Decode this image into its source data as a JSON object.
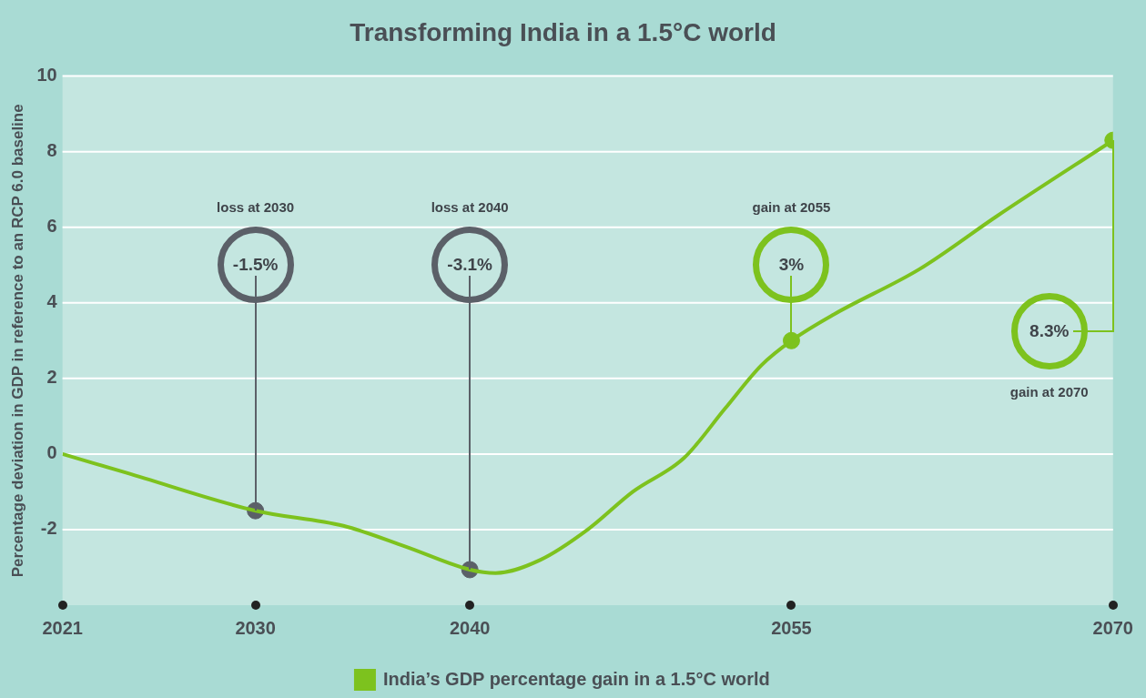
{
  "chart_data": {
    "type": "line",
    "title": "Transforming India in a 1.5°C world",
    "ylabel": "Percentage deviation in GDP in reference to an RCP 6.0 baseline",
    "xlim": [
      2021,
      2070
    ],
    "xticks": [
      2021,
      2030,
      2040,
      2055,
      2070
    ],
    "ylim": [
      -4,
      10
    ],
    "yticks": [
      10,
      8,
      6,
      4,
      2,
      0,
      -2
    ],
    "grid": "y",
    "legend": "bottom",
    "series": [
      {
        "name": "India’s GDP percentage gain in a 1.5°C world",
        "color": "#7dc21e",
        "marker": "none",
        "x": [
          2021,
          2024,
          2030,
          2034.1,
          2037,
          2040,
          2041.2,
          2043.3,
          2045.5,
          2047.6,
          2050,
          2051.9,
          2053.6,
          2055,
          2057,
          2061,
          2064.6,
          2070
        ],
        "values": [
          0,
          -0.5,
          -1.5,
          -1.9,
          -2.45,
          -3.06,
          -3.15,
          -2.8,
          -2.0,
          -1.0,
          -0.1,
          1.2,
          2.35,
          3,
          3.7,
          4.9,
          6.3,
          8.3
        ]
      },
      {
        "type": "scatter",
        "marker": "circle",
        "x": [
          2030,
          2040,
          2055,
          2070
        ],
        "values": [
          -1.5,
          -3.06,
          3,
          8.3
        ],
        "colors": [
          "#5b6068",
          "#5b6068",
          "#7dc21e",
          "#7dc21e"
        ]
      }
    ],
    "annotations": [
      "loss at 2030",
      {
        "text": "-1.5%",
        "x": 2030,
        "y": -1.5
      },
      "loss at 2040",
      {
        "text": "-3.1%",
        "x": 2040,
        "y": -3.06
      },
      "gain at 2055",
      {
        "text": "3%",
        "x": 2055,
        "y": 3
      },
      "gain at 2070",
      {
        "text": "8.3%",
        "x": 2070,
        "y": 8.3
      }
    ]
  }
}
